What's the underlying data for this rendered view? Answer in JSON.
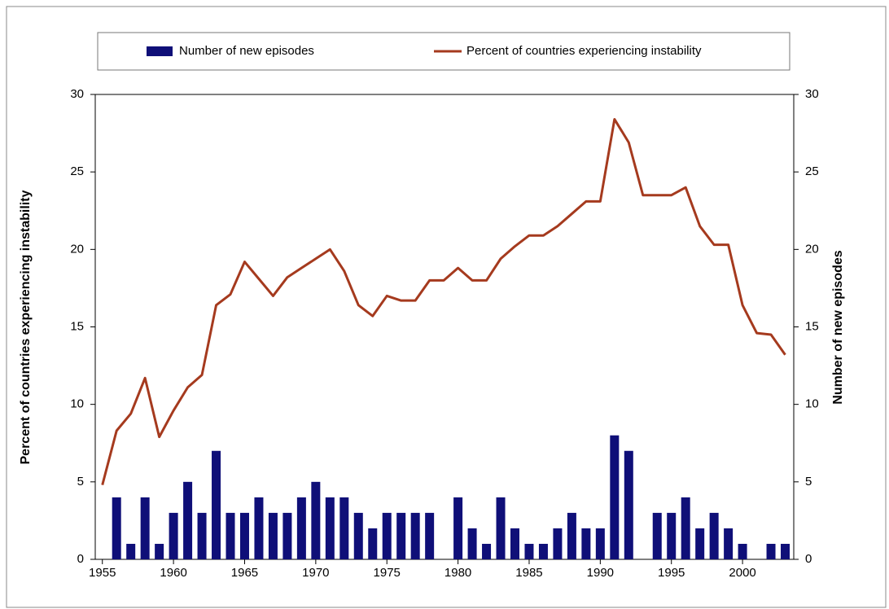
{
  "chart_data": {
    "type": "bar-line",
    "x": [
      1955,
      1956,
      1957,
      1958,
      1959,
      1960,
      1961,
      1962,
      1963,
      1964,
      1965,
      1966,
      1967,
      1968,
      1969,
      1970,
      1971,
      1972,
      1973,
      1974,
      1975,
      1976,
      1977,
      1978,
      1979,
      1980,
      1981,
      1982,
      1983,
      1984,
      1985,
      1986,
      1987,
      1988,
      1989,
      1990,
      1991,
      1992,
      1993,
      1994,
      1995,
      1996,
      1997,
      1998,
      1999,
      2000,
      2001,
      2002,
      2003
    ],
    "series": [
      {
        "name": "Number of new episodes",
        "type": "bar",
        "axis": "y2",
        "color": "#0f0f78",
        "values": [
          0,
          4,
          1,
          4,
          1,
          3,
          5,
          3,
          7,
          3,
          3,
          4,
          3,
          3,
          4,
          5,
          4,
          4,
          3,
          2,
          3,
          3,
          3,
          3,
          0,
          4,
          2,
          1,
          4,
          2,
          1,
          1,
          2,
          3,
          2,
          2,
          8,
          7,
          0,
          3,
          3,
          4,
          2,
          3,
          2,
          1,
          0,
          1,
          1
        ]
      },
      {
        "name": "Percent of countries experiencing instability",
        "type": "line",
        "color": "#a53a1e",
        "values": [
          4.8,
          8.3,
          9.4,
          11.7,
          7.9,
          9.6,
          11.1,
          11.9,
          16.4,
          17.1,
          19.2,
          18.1,
          17.0,
          18.2,
          18.8,
          19.4,
          20.0,
          18.6,
          16.4,
          15.7,
          17.0,
          16.7,
          16.7,
          18.0,
          18.0,
          18.8,
          18.0,
          18.0,
          19.4,
          20.2,
          20.9,
          20.9,
          21.5,
          22.3,
          23.1,
          23.1,
          28.4,
          26.9,
          23.5,
          23.5,
          23.5,
          24.0,
          21.5,
          20.3,
          20.3,
          16.4,
          14.6,
          14.5,
          13.2
        ]
      }
    ],
    "ylabel": "Percent of countries experiencing instability",
    "y2label": "Number of new episodes",
    "xlim": [
      1954.5,
      2003.6
    ],
    "xticks": [
      1955,
      1960,
      1965,
      1970,
      1975,
      1980,
      1985,
      1990,
      1995,
      2000
    ],
    "ylim": [
      0,
      30
    ],
    "yticks": [
      0,
      5,
      10,
      15,
      20,
      25,
      30
    ],
    "y2lim": [
      0,
      30
    ],
    "y2ticks": [
      0,
      5,
      10,
      15,
      20,
      25,
      30
    ],
    "legend": "top"
  }
}
